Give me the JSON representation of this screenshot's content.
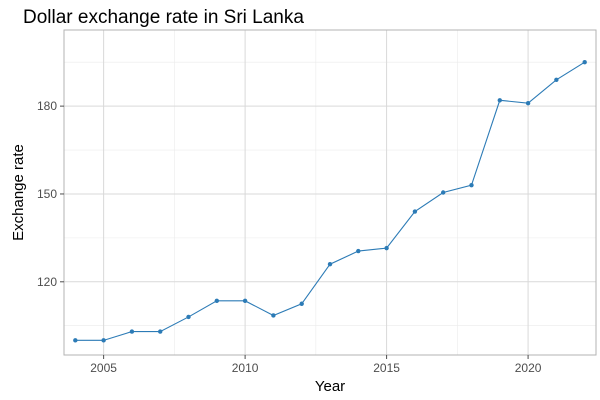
{
  "chart_data": {
    "type": "line",
    "title": "Dollar exchange rate in Sri Lanka",
    "xlabel": "Year",
    "ylabel": "Exchange rate",
    "x": [
      2004,
      2005,
      2006,
      2007,
      2008,
      2009,
      2010,
      2011,
      2012,
      2013,
      2014,
      2015,
      2016,
      2017,
      2018,
      2019,
      2020,
      2021,
      2022
    ],
    "series": [
      {
        "values": [
          100.0,
          100.0,
          103.0,
          103.0,
          108.0,
          113.5,
          113.5,
          108.5,
          112.5,
          126.0,
          130.5,
          131.5,
          144.0,
          150.5,
          153.0,
          182.0,
          181.0,
          189.0,
          195.0
        ]
      }
    ],
    "xticks": [
      2005,
      2010,
      2015,
      2020
    ],
    "yticks": [
      120,
      150,
      180
    ],
    "xlim": [
      2003.6,
      2022.4
    ],
    "ylim": [
      95,
      206
    ],
    "grid": true,
    "colors": {
      "line": "#2c7bb6",
      "point": "#2c7bb6"
    }
  }
}
